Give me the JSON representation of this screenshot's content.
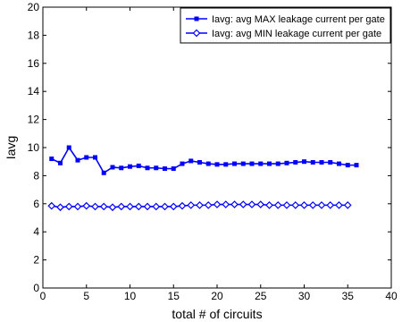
{
  "chart_data": {
    "type": "line",
    "title": "",
    "xlabel": "total # of circuits",
    "ylabel": "Iavg",
    "xlim": [
      0,
      40
    ],
    "ylim": [
      0,
      20
    ],
    "xticks": [
      0,
      5,
      10,
      15,
      20,
      25,
      30,
      35,
      40
    ],
    "yticks": [
      0,
      2,
      4,
      6,
      8,
      10,
      12,
      14,
      16,
      18,
      20
    ],
    "grid": false,
    "legend_position": "top-right",
    "series": [
      {
        "name": "Iavg: avg MAX leakage current per gate",
        "marker": "square",
        "color": "#0000ff",
        "x": [
          1,
          2,
          3,
          4,
          5,
          6,
          7,
          8,
          9,
          10,
          11,
          12,
          13,
          14,
          15,
          16,
          17,
          18,
          19,
          20,
          21,
          22,
          23,
          24,
          25,
          26,
          27,
          28,
          29,
          30,
          31,
          32,
          33,
          34,
          35,
          36
        ],
        "values": [
          9.2,
          8.9,
          10.0,
          9.1,
          9.3,
          9.3,
          8.2,
          8.6,
          8.55,
          8.65,
          8.7,
          8.55,
          8.55,
          8.5,
          8.5,
          8.85,
          9.05,
          8.95,
          8.85,
          8.8,
          8.8,
          8.85,
          8.85,
          8.85,
          8.85,
          8.85,
          8.85,
          8.9,
          8.95,
          9.0,
          8.95,
          8.95,
          8.95,
          8.85,
          8.75,
          8.75
        ]
      },
      {
        "name": "Iavg: avg MIN leakage current per gate",
        "marker": "diamond",
        "color": "#0000ff",
        "x": [
          1,
          2,
          3,
          4,
          5,
          6,
          7,
          8,
          9,
          10,
          11,
          12,
          13,
          14,
          15,
          16,
          17,
          18,
          19,
          20,
          21,
          22,
          23,
          24,
          25,
          26,
          27,
          28,
          29,
          30,
          31,
          32,
          33,
          34,
          35
        ],
        "values": [
          5.85,
          5.75,
          5.8,
          5.8,
          5.85,
          5.8,
          5.8,
          5.75,
          5.8,
          5.8,
          5.8,
          5.8,
          5.8,
          5.8,
          5.8,
          5.85,
          5.9,
          5.9,
          5.9,
          5.95,
          5.95,
          5.95,
          5.95,
          5.95,
          5.95,
          5.9,
          5.9,
          5.9,
          5.9,
          5.9,
          5.9,
          5.9,
          5.9,
          5.9,
          5.9
        ]
      }
    ]
  }
}
